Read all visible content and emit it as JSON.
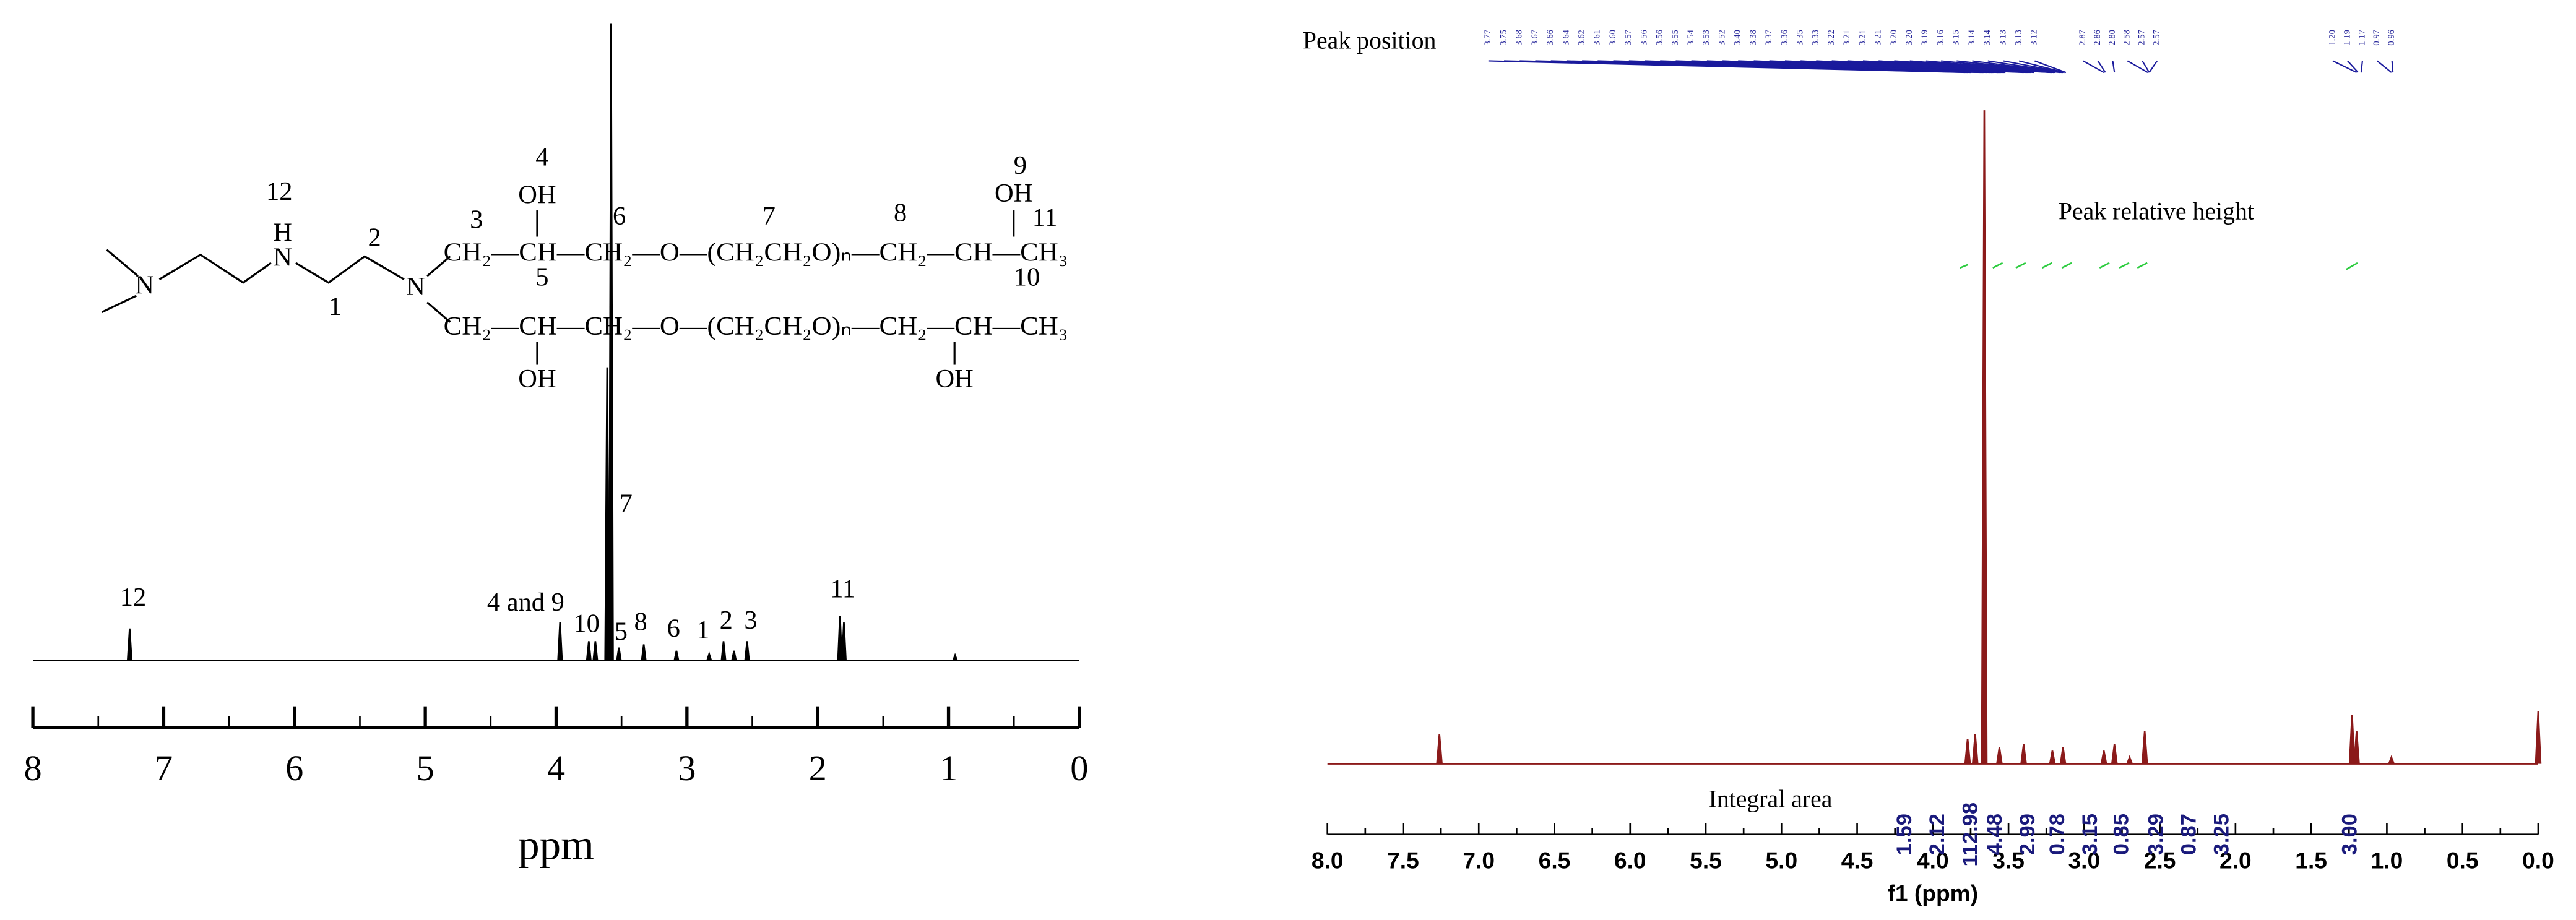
{
  "chart_data": [
    {
      "type": "line",
      "xlabel": "ppm",
      "xlim": [
        8,
        0
      ],
      "xticks": [
        8,
        7,
        6,
        5,
        4,
        3,
        2,
        1,
        0
      ],
      "ylim": [
        0,
        100
      ],
      "color": "#000000",
      "series": [
        {
          "x": [
            7.26,
            3.97,
            3.75,
            3.7,
            3.61,
            3.58,
            3.52,
            3.33,
            3.08,
            2.83,
            2.72,
            2.64,
            2.54,
            1.83,
            1.8,
            0.95
          ],
          "values": [
            5,
            6,
            3,
            3,
            46,
            100,
            2,
            2.5,
            1.5,
            1,
            3,
            1.5,
            3,
            7,
            6,
            0.8
          ]
        }
      ],
      "annotations": [
        "12",
        "4 and 9",
        "10",
        "7",
        "5",
        "8",
        "6",
        "1",
        "2",
        "3",
        "11"
      ],
      "structure": [
        "N",
        "H",
        "N",
        "12",
        "2",
        "1",
        "N",
        "3",
        "4",
        "OH",
        "6",
        "7",
        "8",
        "9",
        "OH",
        "11",
        "10",
        "5",
        "CH₂—CH—CH₂—O—(CH₂CH₂O)ₙ—CH₂—CH—CH₃",
        "CH₂—CH—CH₂—O—(CH₂CH₂O)ₙ—CH₂—CH—CH₃",
        "OH",
        "OH"
      ]
    },
    {
      "type": "line",
      "xlabel": "f1 (ppm)",
      "xlim": [
        8,
        0
      ],
      "xticks": [
        {
          "value": 8,
          "label": "8.0"
        },
        {
          "value": 7.5,
          "label": "7.5"
        },
        {
          "value": 7,
          "label": "7.0"
        },
        {
          "value": 6.5,
          "label": "6.5"
        },
        {
          "value": 6,
          "label": "6.0"
        },
        {
          "value": 5.5,
          "label": "5.5"
        },
        {
          "value": 5,
          "label": "5.0"
        },
        {
          "value": 4.5,
          "label": "4.5"
        },
        {
          "value": 4,
          "label": "4.0"
        },
        {
          "value": 3.5,
          "label": "3.5"
        },
        {
          "value": 3,
          "label": "3.0"
        },
        {
          "value": 2.5,
          "label": "2.5"
        },
        {
          "value": 2,
          "label": "2.0"
        },
        {
          "value": 1.5,
          "label": "1.5"
        },
        {
          "value": 1,
          "label": "1.0"
        },
        {
          "value": 0.5,
          "label": "0.5"
        },
        {
          "value": 0,
          "label": "0.0"
        }
      ],
      "ylim": [
        0,
        100
      ],
      "color": "#8b1a1a",
      "series": [
        {
          "x": [
            7.26,
            3.77,
            3.72,
            3.66,
            3.56,
            3.4,
            3.21,
            3.14,
            2.87,
            2.8,
            2.7,
            2.6,
            1.23,
            1.2,
            0.97,
            0.0
          ],
          "values": [
            4.5,
            3.8,
            4.5,
            100,
            2.5,
            3,
            2,
            2.5,
            2,
            3,
            1,
            5,
            7.5,
            5,
            1,
            8
          ]
        }
      ],
      "annotations": [
        "Peak position",
        "Peak relative height",
        "Integral area"
      ],
      "peak_labels": [
        "3.77",
        "3.75",
        "3.68",
        "3.67",
        "3.66",
        "3.64",
        "3.62",
        "3.61",
        "3.60",
        "3.57",
        "3.56",
        "3.56",
        "3.55",
        "3.54",
        "3.53",
        "3.52",
        "3.40",
        "3.38",
        "3.37",
        "3.36",
        "3.35",
        "3.33",
        "3.22",
        "3.21",
        "3.21",
        "3.21",
        "3.20",
        "3.20",
        "3.19",
        "3.16",
        "3.15",
        "3.14",
        "3.14",
        "3.13",
        "3.13",
        "3.12",
        "2.87",
        "2.86",
        "2.80",
        "2.58",
        "2.57",
        "2.57",
        "1.20",
        "1.19",
        "1.17",
        "0.97",
        "0.96"
      ],
      "integrals": [
        1.59,
        2.12,
        112.98,
        4.48,
        2.99,
        0.78,
        3.15,
        0.85,
        3.29,
        0.87,
        3.25,
        3
      ],
      "integral_labels": [
        "1.59",
        "2.12",
        "112.98",
        "4.48",
        "2.99",
        "0.78",
        "3.15",
        "0.85",
        "3.29",
        "0.87",
        "3.25",
        "3.00"
      ]
    }
  ]
}
